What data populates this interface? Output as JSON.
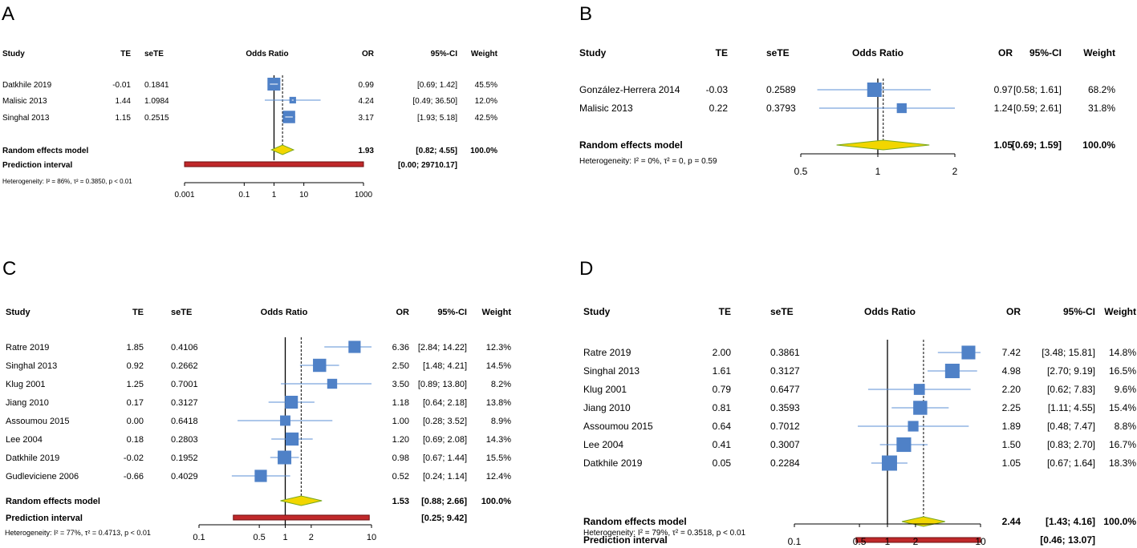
{
  "chart_data": [
    {
      "type": "forest",
      "panel_label": "A",
      "headers": {
        "study": "Study",
        "te": "TE",
        "sete": "seTE",
        "plot": "Odds Ratio",
        "or": "OR",
        "ci": "95%-CI",
        "weight": "Weight"
      },
      "scale": "log",
      "xticks": [
        "0.001",
        "0.1",
        "1",
        "10",
        "1000"
      ],
      "tick_values": [
        0.001,
        0.1,
        1,
        10,
        1000
      ],
      "xlim": [
        0.001,
        1000
      ],
      "studies": [
        {
          "name": "Datkhile 2019",
          "te": "-0.01",
          "sete": "0.1841",
          "or_text": "0.99",
          "ci_text": "[0.69;    1.42]",
          "weight_text": "45.5%",
          "or": 0.99,
          "lower": 0.69,
          "upper": 1.42,
          "weight": 45.5
        },
        {
          "name": "Malisic 2013",
          "te": "1.44",
          "sete": "1.0984",
          "or_text": "4.24",
          "ci_text": "[0.49;  36.50]",
          "weight_text": "12.0%",
          "or": 4.24,
          "lower": 0.49,
          "upper": 36.5,
          "weight": 12.0
        },
        {
          "name": "Singhal 2013",
          "te": "1.15",
          "sete": "0.2515",
          "or_text": "3.17",
          "ci_text": "[1.93;    5.18]",
          "weight_text": "42.5%",
          "or": 3.17,
          "lower": 1.93,
          "upper": 5.18,
          "weight": 42.5
        }
      ],
      "pooled": {
        "name": "Random effects model",
        "or_text": "1.93",
        "ci_text": "[0.82;    4.55]",
        "weight_text": "100.0%",
        "or": 1.93,
        "lower": 0.82,
        "upper": 4.55
      },
      "prediction": {
        "name": "Prediction interval",
        "ci_text": "[0.00; 29710.17]",
        "lower": 0.00045,
        "upper": 29710.17
      },
      "heterogeneity": "Heterogeneity: I² = 86%, τ² = 0.3850, p < 0.01"
    },
    {
      "type": "forest",
      "panel_label": "B",
      "headers": {
        "study": "Study",
        "te": "TE",
        "sete": "seTE",
        "plot": "Odds Ratio",
        "or": "OR",
        "ci": "95%-CI",
        "weight": "Weight"
      },
      "scale": "log",
      "xticks": [
        "0.5",
        "1",
        "2"
      ],
      "tick_values": [
        0.5,
        1,
        2
      ],
      "xlim": [
        0.5,
        2
      ],
      "studies": [
        {
          "name": "González-Herrera 2014",
          "te": "-0.03",
          "sete": "0.2589",
          "or_text": "0.97",
          "ci_text": "[0.58; 1.61]",
          "weight_text": "68.2%",
          "or": 0.97,
          "lower": 0.58,
          "upper": 1.61,
          "weight": 68.2
        },
        {
          "name": "Malisic  2013",
          "te": "0.22",
          "sete": "0.3793",
          "or_text": "1.24",
          "ci_text": "[0.59; 2.61]",
          "weight_text": "31.8%",
          "or": 1.24,
          "lower": 0.59,
          "upper": 2.61,
          "weight": 31.8
        }
      ],
      "pooled": {
        "name": "Random effects model",
        "or_text": "1.05",
        "ci_text": "[0.69; 1.59]",
        "weight_text": "100.0%",
        "or": 1.05,
        "lower": 0.69,
        "upper": 1.59
      },
      "heterogeneity": "Heterogeneity: I² = 0%, τ² = 0, p = 0.59"
    },
    {
      "type": "forest",
      "panel_label": "C",
      "headers": {
        "study": "Study",
        "te": "TE",
        "sete": "seTE",
        "plot": "Odds Ratio",
        "or": "OR",
        "ci": "95%-CI",
        "weight": "Weight"
      },
      "scale": "log",
      "xticks": [
        "0.1",
        "0.5",
        "1",
        "2",
        "10"
      ],
      "tick_values": [
        0.1,
        0.5,
        1,
        2,
        10
      ],
      "xlim": [
        0.1,
        10
      ],
      "studies": [
        {
          "name": "Ratre  2019",
          "te": "1.85",
          "sete": "0.4106",
          "or_text": "6.36",
          "ci_text": "[2.84; 14.22]",
          "weight_text": "12.3%",
          "or": 6.36,
          "lower": 2.84,
          "upper": 14.22,
          "weight": 12.3
        },
        {
          "name": "Singhal 2013",
          "te": "0.92",
          "sete": "0.2662",
          "or_text": "2.50",
          "ci_text": "[1.48;  4.21]",
          "weight_text": "14.5%",
          "or": 2.5,
          "lower": 1.48,
          "upper": 4.21,
          "weight": 14.5
        },
        {
          "name": "Klug  2001",
          "te": "1.25",
          "sete": "0.7001",
          "or_text": "3.50",
          "ci_text": "[0.89; 13.80]",
          "weight_text": "8.2%",
          "or": 3.5,
          "lower": 0.89,
          "upper": 13.8,
          "weight": 8.2
        },
        {
          "name": "Jiang  2010",
          "te": "0.17",
          "sete": "0.3127",
          "or_text": "1.18",
          "ci_text": "[0.64;  2.18]",
          "weight_text": "13.8%",
          "or": 1.18,
          "lower": 0.64,
          "upper": 2.18,
          "weight": 13.8
        },
        {
          "name": "Assoumou  2015",
          "te": "0.00",
          "sete": "0.6418",
          "or_text": "1.00",
          "ci_text": "[0.28;  3.52]",
          "weight_text": "8.9%",
          "or": 1.0,
          "lower": 0.28,
          "upper": 3.52,
          "weight": 8.9
        },
        {
          "name": "Lee  2004",
          "te": "0.18",
          "sete": "0.2803",
          "or_text": "1.20",
          "ci_text": "[0.69;  2.08]",
          "weight_text": "14.3%",
          "or": 1.2,
          "lower": 0.69,
          "upper": 2.08,
          "weight": 14.3
        },
        {
          "name": "Datkhile  2019",
          "te": "-0.02",
          "sete": "0.1952",
          "or_text": "0.98",
          "ci_text": "[0.67;  1.44]",
          "weight_text": "15.5%",
          "or": 0.98,
          "lower": 0.67,
          "upper": 1.44,
          "weight": 15.5
        },
        {
          "name": "Gudleviciene  2006",
          "te": "-0.66",
          "sete": "0.4029",
          "or_text": "0.52",
          "ci_text": "[0.24;  1.14]",
          "weight_text": "12.4%",
          "or": 0.52,
          "lower": 0.24,
          "upper": 1.14,
          "weight": 12.4
        }
      ],
      "pooled": {
        "name": "Random effects model",
        "or_text": "1.53",
        "ci_text": "[0.88;  2.66]",
        "weight_text": "100.0%",
        "or": 1.53,
        "lower": 0.88,
        "upper": 2.66
      },
      "prediction": {
        "name": "Prediction interval",
        "ci_text": "[0.25;  9.42]",
        "lower": 0.25,
        "upper": 9.42
      },
      "heterogeneity": "Heterogeneity: I² = 77%, τ² = 0.4713, p < 0.01"
    },
    {
      "type": "forest",
      "panel_label": "D",
      "headers": {
        "study": "Study",
        "te": "TE",
        "sete": "seTE",
        "plot": "Odds Ratio",
        "or": "OR",
        "ci": "95%-CI",
        "weight": "Weight"
      },
      "scale": "log",
      "xticks": [
        "0.1",
        "0.5",
        "1",
        "2",
        "10"
      ],
      "tick_values": [
        0.1,
        0.5,
        1,
        2,
        10
      ],
      "xlim": [
        0.1,
        10
      ],
      "studies": [
        {
          "name": "Ratre  2019",
          "te": "2.00",
          "sete": "0.3861",
          "or_text": "7.42",
          "ci_text": "[3.48; 15.81]",
          "weight_text": "14.8%",
          "or": 7.42,
          "lower": 3.48,
          "upper": 15.81,
          "weight": 14.8
        },
        {
          "name": "Singhal 2013",
          "te": "1.61",
          "sete": "0.3127",
          "or_text": "4.98",
          "ci_text": "[2.70;  9.19]",
          "weight_text": "16.5%",
          "or": 4.98,
          "lower": 2.7,
          "upper": 9.19,
          "weight": 16.5
        },
        {
          "name": "Klug  2001",
          "te": "0.79",
          "sete": "0.6477",
          "or_text": "2.20",
          "ci_text": "[0.62;  7.83]",
          "weight_text": "9.6%",
          "or": 2.2,
          "lower": 0.62,
          "upper": 7.83,
          "weight": 9.6
        },
        {
          "name": "Jiang  2010",
          "te": "0.81",
          "sete": "0.3593",
          "or_text": "2.25",
          "ci_text": "[1.11;  4.55]",
          "weight_text": "15.4%",
          "or": 2.25,
          "lower": 1.11,
          "upper": 4.55,
          "weight": 15.4
        },
        {
          "name": "Assoumou  2015",
          "te": "0.64",
          "sete": "0.7012",
          "or_text": "1.89",
          "ci_text": "[0.48;  7.47]",
          "weight_text": "8.8%",
          "or": 1.89,
          "lower": 0.48,
          "upper": 7.47,
          "weight": 8.8
        },
        {
          "name": "Lee  2004",
          "te": "0.41",
          "sete": "0.3007",
          "or_text": "1.50",
          "ci_text": "[0.83;  2.70]",
          "weight_text": "16.7%",
          "or": 1.5,
          "lower": 0.83,
          "upper": 2.7,
          "weight": 16.7
        },
        {
          "name": "Datkhile  2019",
          "te": "0.05",
          "sete": "0.2284",
          "or_text": "1.05",
          "ci_text": "[0.67;  1.64]",
          "weight_text": "18.3%",
          "or": 1.05,
          "lower": 0.67,
          "upper": 1.64,
          "weight": 18.3
        }
      ],
      "pooled": {
        "name": "Random effects model",
        "or_text": "2.44",
        "ci_text": "[1.43;  4.16]",
        "weight_text": "100.0%",
        "or": 2.44,
        "lower": 1.43,
        "upper": 4.16
      },
      "prediction": {
        "name": "Prediction interval",
        "ci_text": "[0.46; 13.07]",
        "lower": 0.46,
        "upper": 13.07
      },
      "heterogeneity": "Heterogeneity: I² = 79%, τ² = 0.3518, p < 0.01"
    }
  ],
  "colors": {
    "box": "#4f81c7",
    "ci_line": "#5b8fd4",
    "diamond_fill": "#f2d600",
    "diamond_stroke": "#7aa81e",
    "prediction_fill": "#c0282a",
    "prediction_stroke": "#6d0f10",
    "axis": "#000000"
  }
}
